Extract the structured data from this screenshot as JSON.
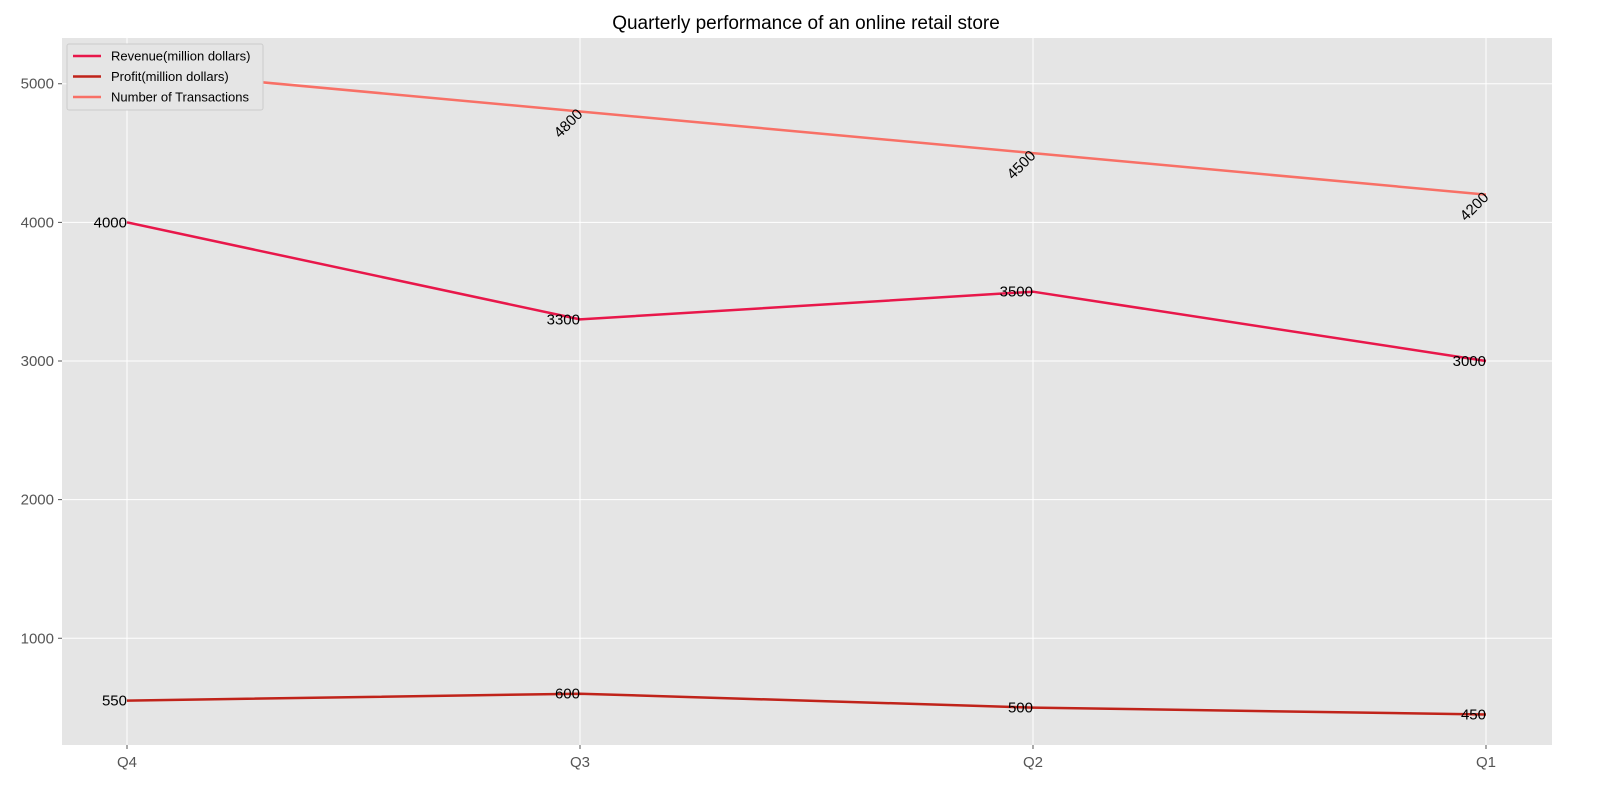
{
  "chart_data": {
    "type": "line",
    "title": "Quarterly performance of an online retail store",
    "xlabel": "",
    "ylabel": "",
    "categories": [
      "Q4",
      "Q3",
      "Q2",
      "Q1"
    ],
    "series": [
      {
        "name": "Revenue(million dollars)",
        "values": [
          4000,
          3300,
          3500,
          3000
        ],
        "color": "#e8174a",
        "label_rotation": 0
      },
      {
        "name": "Profit(million dollars)",
        "values": [
          550,
          600,
          500,
          450
        ],
        "color": "#c0231a",
        "label_rotation": 0
      },
      {
        "name": "Number of Transactions",
        "values": [
          5100,
          4800,
          4500,
          4200
        ],
        "color": "#f87066",
        "label_rotation": -45
      }
    ],
    "ylim": [
      230,
      5330
    ],
    "yticks": [
      1000,
      2000,
      3000,
      4000,
      5000
    ],
    "grid": true,
    "legend_position": "top-left",
    "colors": {
      "plot_background": "#e5e5e5",
      "grid": "#ffffff",
      "legend_background": "#e5e5e5"
    }
  }
}
